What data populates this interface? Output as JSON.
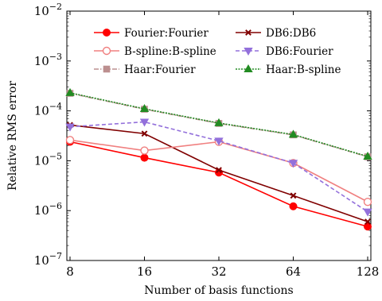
{
  "chart_data": {
    "type": "line",
    "title": "",
    "xlabel": "Number of basis functions",
    "ylabel": "Relative RMS error",
    "x": [
      8,
      16,
      32,
      64,
      128
    ],
    "x_ticks": [
      "8",
      "16",
      "32",
      "64",
      "128"
    ],
    "x_scale": "log2",
    "y_scale": "log10",
    "ylim": [
      1e-07,
      0.01
    ],
    "y_ticks": [
      {
        "base": "10",
        "exp": "−7"
      },
      {
        "base": "10",
        "exp": "−6"
      },
      {
        "base": "10",
        "exp": "−5"
      },
      {
        "base": "10",
        "exp": "−4"
      },
      {
        "base": "10",
        "exp": "−3"
      },
      {
        "base": "10",
        "exp": "−2"
      }
    ],
    "grid": false,
    "legend_position": "top-center",
    "series": [
      {
        "name": "Fourier:Fourier",
        "color": "#ff0000",
        "dash": "solid",
        "marker": "filled-circle",
        "values": [
          2.4e-05,
          1.15e-05,
          5.8e-06,
          1.22e-06,
          4.8e-07
        ]
      },
      {
        "name": "DB6:DB6",
        "color": "#800000",
        "dash": "solid",
        "marker": "x",
        "values": [
          5.2e-05,
          3.5e-05,
          6.5e-06,
          2e-06,
          6e-07
        ]
      },
      {
        "name": "B-spline:B-spline",
        "color": "#f08080",
        "dash": "solid",
        "marker": "open-circle",
        "values": [
          2.6e-05,
          1.6e-05,
          2.4e-05,
          9e-06,
          1.5e-06
        ]
      },
      {
        "name": "DB6:Fourier",
        "color": "#9370db",
        "dash": "dashed",
        "marker": "triangle-down",
        "values": [
          4.8e-05,
          6e-05,
          2.5e-05,
          9e-06,
          9.5e-07
        ]
      },
      {
        "name": "Haar:Fourier",
        "color": "#bc8f8f",
        "dash": "dashdot",
        "marker": "square",
        "values": [
          0.000225,
          0.000108,
          5.6e-05,
          3.3e-05,
          1.2e-05
        ]
      },
      {
        "name": "Haar:B-spline",
        "color": "#228b22",
        "dash": "dotted",
        "marker": "triangle-up",
        "values": [
          0.00023,
          0.00011,
          5.7e-05,
          3.35e-05,
          1.22e-05
        ]
      }
    ]
  }
}
